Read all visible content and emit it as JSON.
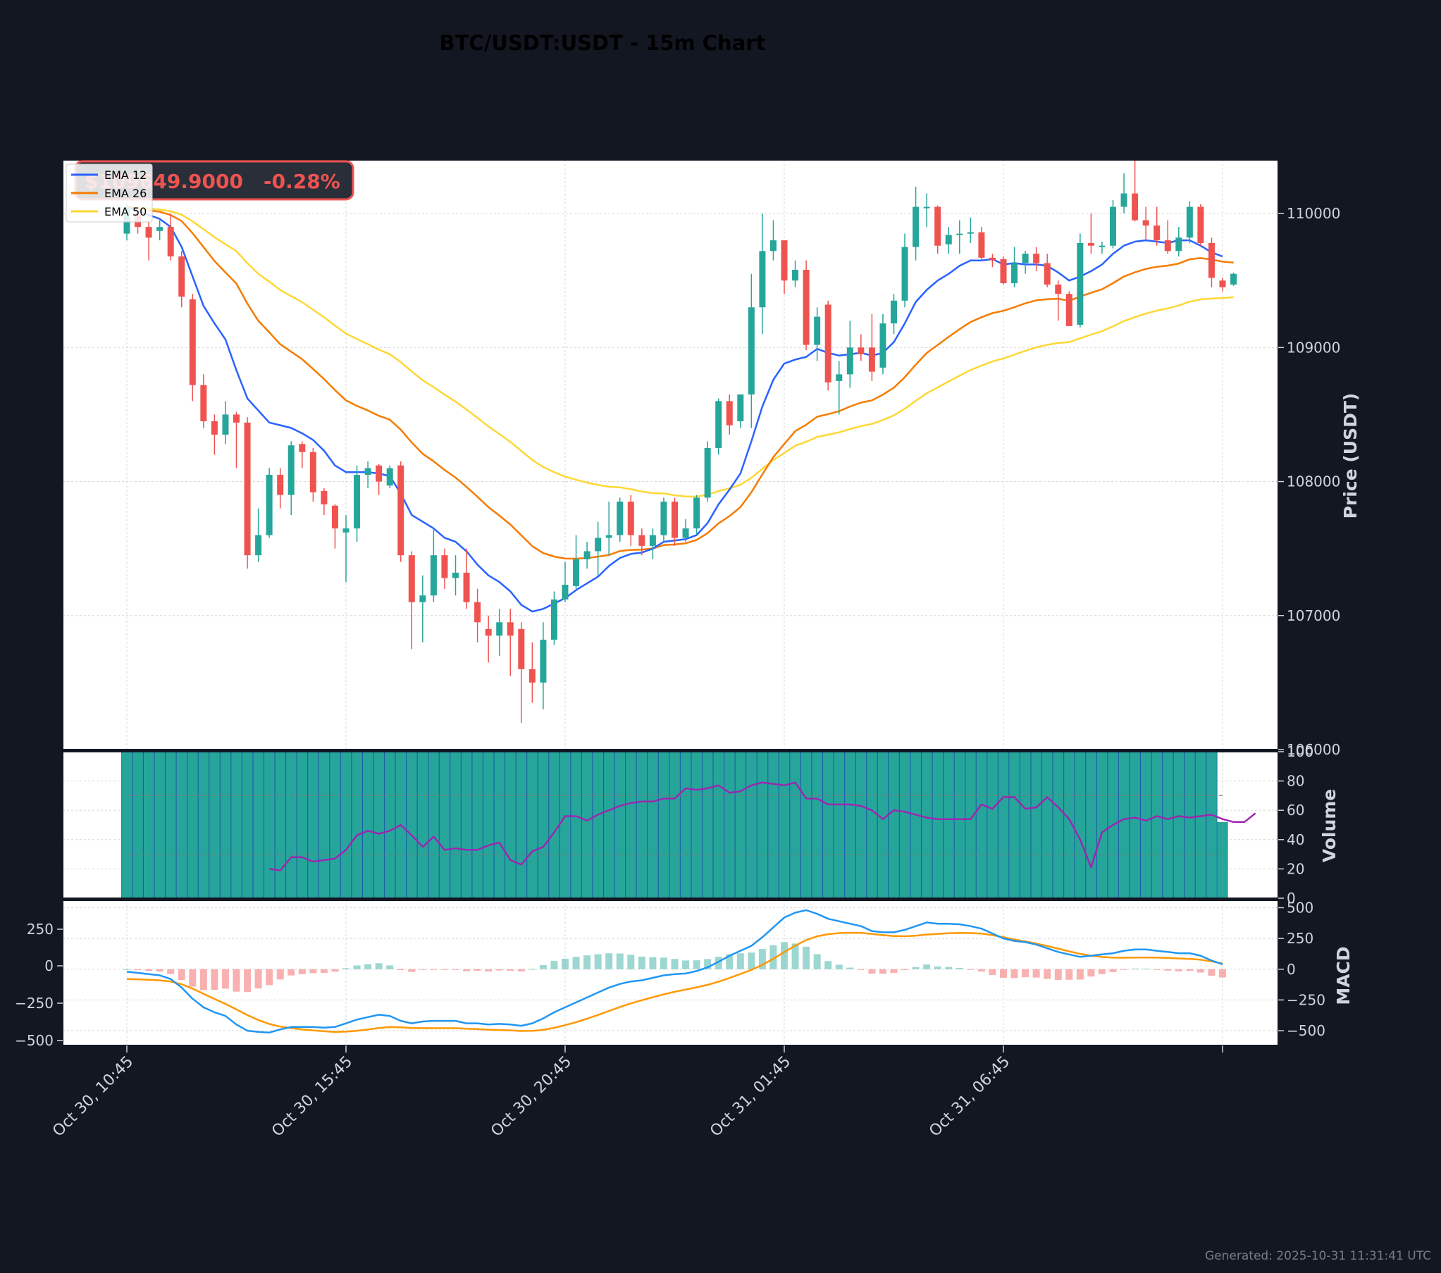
{
  "title": "BTC/USDT:USDT - 15m Chart",
  "footer": "Generated: 2025-10-31 11:31:41 UTC",
  "price_badge": {
    "price": "$109649.9000",
    "change": "-0.28%"
  },
  "colors": {
    "background": "#131722",
    "panel": "#ffffff",
    "up": "#26a69a",
    "down": "#ef5350",
    "ema12": "#2962ff",
    "ema26": "#f57c00",
    "ema50": "#fdd835",
    "rsi": "#9c27b0",
    "macd": "#2196f3",
    "signal": "#ff9800",
    "grid": "#d8d8d8"
  },
  "chart_data": [
    {
      "type": "candlestick",
      "ylabel": "Price (USDT)",
      "ylim": [
        106000,
        110400
      ],
      "yticks": [
        106000,
        107000,
        108000,
        109000,
        110000
      ],
      "x_ticks": [
        {
          "index": 0,
          "label": "Oct 30, 10:45"
        },
        {
          "index": 20,
          "label": "Oct 30, 15:45"
        },
        {
          "index": 40,
          "label": "Oct 30, 20:45"
        },
        {
          "index": 60,
          "label": "Oct 31, 01:45"
        },
        {
          "index": 80,
          "label": "Oct 31, 06:45"
        },
        {
          "index": 100,
          "label": ""
        }
      ],
      "legend": {
        "position": "top-left",
        "entries": [
          "EMA 12",
          "EMA 26",
          "EMA 50"
        ]
      },
      "grid": true,
      "candles": [
        [
          109850,
          110050,
          110080,
          109800
        ],
        [
          110000,
          109900,
          110050,
          109850
        ],
        [
          109900,
          109820,
          109950,
          109650
        ],
        [
          109870,
          109900,
          109950,
          109800
        ],
        [
          109900,
          109680,
          110000,
          109650
        ],
        [
          109680,
          109380,
          109720,
          109300
        ],
        [
          109360,
          108720,
          109400,
          108600
        ],
        [
          108720,
          108450,
          108800,
          108400
        ],
        [
          108450,
          108350,
          108500,
          108200
        ],
        [
          108350,
          108500,
          108600,
          108280
        ],
        [
          108500,
          108440,
          108520,
          108100
        ],
        [
          108440,
          107450,
          108480,
          107350
        ],
        [
          107450,
          107600,
          107800,
          107400
        ],
        [
          107600,
          108050,
          108100,
          107580
        ],
        [
          108050,
          107900,
          108100,
          107800
        ],
        [
          107900,
          108270,
          108300,
          107750
        ],
        [
          108280,
          108220,
          108300,
          108100
        ],
        [
          108220,
          107920,
          108250,
          107850
        ],
        [
          107930,
          107830,
          107950,
          107750
        ],
        [
          107820,
          107650,
          107830,
          107500
        ],
        [
          107620,
          107650,
          107750,
          107250
        ],
        [
          107650,
          108050,
          108120,
          107550
        ],
        [
          108050,
          108100,
          108150,
          107950
        ],
        [
          108120,
          108000,
          108130,
          107900
        ],
        [
          107970,
          108100,
          108120,
          107950
        ],
        [
          108120,
          107450,
          108150,
          107400
        ],
        [
          107450,
          107100,
          107480,
          106750
        ],
        [
          107100,
          107150,
          107300,
          106800
        ],
        [
          107150,
          107450,
          107650,
          107100
        ],
        [
          107450,
          107280,
          107500,
          107200
        ],
        [
          107280,
          107320,
          107450,
          107150
        ],
        [
          107320,
          107100,
          107500,
          107050
        ],
        [
          107100,
          106950,
          107200,
          106800
        ],
        [
          106900,
          106850,
          107000,
          106650
        ],
        [
          106850,
          106950,
          107050,
          106700
        ],
        [
          106950,
          106850,
          107050,
          106550
        ],
        [
          106900,
          106600,
          106950,
          106200
        ],
        [
          106600,
          106500,
          106800,
          106350
        ],
        [
          106500,
          106820,
          106950,
          106300
        ],
        [
          106820,
          107120,
          107180,
          106780
        ],
        [
          107120,
          107230,
          107400,
          107100
        ],
        [
          107220,
          107420,
          107600,
          107200
        ],
        [
          107420,
          107480,
          107550,
          107350
        ],
        [
          107480,
          107580,
          107700,
          107300
        ],
        [
          107580,
          107600,
          107850,
          107450
        ],
        [
          107600,
          107850,
          107880,
          107550
        ],
        [
          107850,
          107600,
          107900,
          107520
        ],
        [
          107600,
          107520,
          107650,
          107450
        ],
        [
          107520,
          107600,
          107650,
          107420
        ],
        [
          107600,
          107850,
          107880,
          107550
        ],
        [
          107850,
          107580,
          107880,
          107520
        ],
        [
          107580,
          107650,
          107720,
          107550
        ],
        [
          107650,
          107880,
          107900,
          107600
        ],
        [
          107880,
          108250,
          108300,
          107850
        ],
        [
          108250,
          108600,
          108620,
          108200
        ],
        [
          108600,
          108420,
          108650,
          108350
        ],
        [
          108450,
          108650,
          108650,
          108400
        ],
        [
          108650,
          109300,
          109550,
          108400
        ],
        [
          109300,
          109720,
          110000,
          109100
        ],
        [
          109720,
          109800,
          109950,
          109650
        ],
        [
          109800,
          109500,
          109800,
          109400
        ],
        [
          109500,
          109580,
          109650,
          109450
        ],
        [
          109580,
          109020,
          109650,
          108980
        ],
        [
          109020,
          109230,
          109300,
          108900
        ],
        [
          109320,
          108740,
          109350,
          108680
        ],
        [
          108750,
          108800,
          108900,
          108500
        ],
        [
          108800,
          109000,
          109200,
          108700
        ],
        [
          109000,
          108950,
          109100,
          108900
        ],
        [
          109000,
          108820,
          109250,
          108750
        ],
        [
          108850,
          109180,
          109250,
          108800
        ],
        [
          109180,
          109350,
          109400,
          109100
        ],
        [
          109350,
          109750,
          109850,
          109300
        ],
        [
          109750,
          110050,
          110200,
          109650
        ],
        [
          110050,
          110050,
          110150,
          109900
        ],
        [
          110050,
          109760,
          110060,
          109700
        ],
        [
          109770,
          109840,
          109900,
          109700
        ],
        [
          109850,
          109850,
          109950,
          109700
        ],
        [
          109850,
          109860,
          109970,
          109780
        ],
        [
          109860,
          109670,
          109900,
          109650
        ],
        [
          109670,
          109650,
          109700,
          109600
        ],
        [
          109660,
          109480,
          109680,
          109470
        ],
        [
          109480,
          109630,
          109750,
          109450
        ],
        [
          109630,
          109700,
          109720,
          109550
        ],
        [
          109700,
          109630,
          109750,
          109570
        ],
        [
          109630,
          109470,
          109700,
          109450
        ],
        [
          109470,
          109400,
          109500,
          109200
        ],
        [
          109400,
          109160,
          109420,
          109160
        ],
        [
          109170,
          109780,
          109850,
          109150
        ],
        [
          109780,
          109760,
          110000,
          109700
        ],
        [
          109760,
          109760,
          109790,
          109700
        ],
        [
          109760,
          110050,
          110100,
          109740
        ],
        [
          110050,
          110150,
          110300,
          110000
        ],
        [
          110150,
          109950,
          110400,
          109940
        ],
        [
          109950,
          109910,
          110050,
          109800
        ],
        [
          109910,
          109800,
          110050,
          109760
        ],
        [
          109800,
          109720,
          109950,
          109700
        ],
        [
          109720,
          109820,
          109900,
          109680
        ],
        [
          109820,
          110050,
          110090,
          109780
        ],
        [
          110050,
          109780,
          110070,
          109760
        ],
        [
          109780,
          109520,
          109820,
          109450
        ],
        [
          109500,
          109450,
          109520,
          109420
        ],
        [
          109470,
          109550,
          109560,
          109460
        ]
      ],
      "ema12": [
        110050,
        110020,
        109990,
        109960,
        109900,
        109750,
        109530,
        109310,
        109180,
        109060,
        108830,
        108620,
        108530,
        108440,
        108420,
        108400,
        108360,
        108310,
        108230,
        108120,
        108070,
        108070,
        108070,
        108060,
        108040,
        107910,
        107750,
        107700,
        107650,
        107580,
        107550,
        107480,
        107380,
        107300,
        107250,
        107180,
        107080,
        107030,
        107050,
        107090,
        107130,
        107190,
        107240,
        107290,
        107370,
        107430,
        107460,
        107470,
        107500,
        107550,
        107560,
        107570,
        107600,
        107690,
        107830,
        107940,
        108060,
        108300,
        108560,
        108760,
        108880,
        108910,
        108930,
        108990,
        108960,
        108940,
        108950,
        108960,
        108940,
        108960,
        109040,
        109180,
        109340,
        109430,
        109500,
        109550,
        109610,
        109650,
        109650,
        109660,
        109620,
        109630,
        109620,
        109620,
        109610,
        109560,
        109500,
        109530,
        109570,
        109620,
        109700,
        109760,
        109790,
        109800,
        109790,
        109780,
        109800,
        109800,
        109760,
        109710,
        109680
      ]
    },
    {
      "type": "bar+line",
      "ylabel": "Volume",
      "ylim": [
        0,
        100
      ],
      "yticks": [
        0,
        20,
        40,
        60,
        80,
        100
      ],
      "volume_bars": 100,
      "rsi": [
        20,
        19,
        28,
        28,
        25,
        26,
        27,
        33,
        43,
        46,
        44,
        46,
        50,
        43,
        35,
        42,
        33,
        34,
        33,
        33,
        36,
        38,
        26,
        23,
        32,
        35,
        45,
        56,
        56,
        53,
        57,
        60,
        63,
        65,
        66,
        66,
        68,
        68,
        75,
        74,
        75,
        77,
        72,
        73,
        77,
        79,
        78,
        77,
        79,
        68,
        68,
        64,
        64,
        64,
        63,
        60,
        54,
        60,
        59,
        57,
        55,
        54,
        54,
        54,
        54,
        64,
        61,
        69,
        69,
        61,
        62,
        69,
        62,
        54,
        40,
        21,
        45,
        50,
        54,
        55,
        53,
        56,
        54,
        56,
        55,
        56,
        57,
        54,
        52,
        52,
        58
      ],
      "rsi_guides": [
        70,
        30
      ]
    },
    {
      "type": "line+bar",
      "ylabel": "MACD",
      "ylim_right": [
        -620,
        560
      ],
      "yticks_right": [
        -500,
        -250,
        0,
        250,
        500
      ],
      "yticks_left": [
        -500,
        -250,
        0,
        250
      ],
      "macd": [
        -20,
        -30,
        -40,
        -50,
        -80,
        -150,
        -240,
        -310,
        -350,
        -380,
        -450,
        -500,
        -510,
        -515,
        -490,
        -470,
        -470,
        -470,
        -475,
        -470,
        -440,
        -410,
        -390,
        -370,
        -380,
        -420,
        -440,
        -425,
        -420,
        -420,
        -420,
        -440,
        -440,
        -450,
        -445,
        -450,
        -460,
        -440,
        -400,
        -350,
        -310,
        -270,
        -230,
        -190,
        -150,
        -120,
        -100,
        -90,
        -70,
        -50,
        -40,
        -35,
        -15,
        15,
        60,
        110,
        150,
        190,
        260,
        340,
        420,
        460,
        480,
        450,
        410,
        390,
        370,
        350,
        310,
        300,
        300,
        320,
        350,
        380,
        370,
        370,
        365,
        350,
        330,
        290,
        250,
        230,
        220,
        200,
        170,
        140,
        120,
        100,
        110,
        120,
        130,
        150,
        160,
        160,
        150,
        140,
        130,
        130,
        110,
        70,
        40
      ]
    }
  ]
}
